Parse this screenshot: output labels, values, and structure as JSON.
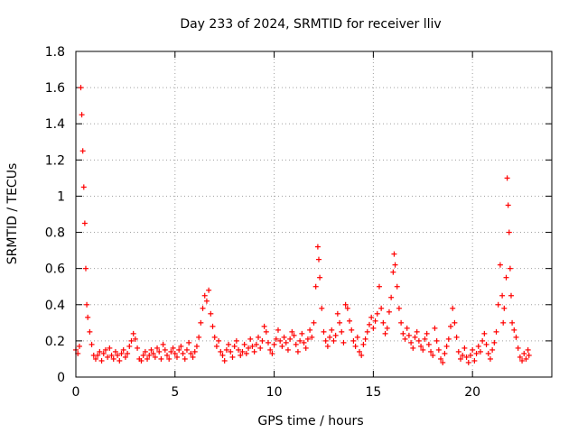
{
  "chart_data": {
    "type": "scatter",
    "title": "Day 233 of 2024, SRMTID for receiver lliv",
    "xlabel": "GPS time / hours",
    "ylabel": "SRMTID / TECUs",
    "xlim": [
      0,
      24
    ],
    "ylim": [
      0,
      1.8
    ],
    "xticks": [
      0,
      5,
      10,
      15,
      20
    ],
    "xtick_labels": [
      "0",
      "5",
      "10",
      "15",
      "20"
    ],
    "yticks": [
      0,
      0.2,
      0.4,
      0.6,
      0.8,
      1.0,
      1.2,
      1.4,
      1.6,
      1.8
    ],
    "ytick_labels": [
      "0",
      "0.2",
      "0.4",
      "0.6",
      "0.8",
      "1",
      "1.2",
      "1.4",
      "1.6",
      "1.8"
    ],
    "grid": true,
    "marker": "+",
    "series": [
      {
        "name": "SRMTID",
        "color": "#ff0000",
        "points": [
          [
            0.0,
            0.15
          ],
          [
            0.1,
            0.13
          ],
          [
            0.18,
            0.17
          ],
          [
            0.25,
            1.6
          ],
          [
            0.3,
            1.45
          ],
          [
            0.35,
            1.25
          ],
          [
            0.4,
            1.05
          ],
          [
            0.45,
            0.85
          ],
          [
            0.5,
            0.6
          ],
          [
            0.55,
            0.4
          ],
          [
            0.6,
            0.33
          ],
          [
            0.7,
            0.25
          ],
          [
            0.8,
            0.18
          ],
          [
            0.9,
            0.12
          ],
          [
            1.0,
            0.1
          ],
          [
            1.1,
            0.12
          ],
          [
            1.2,
            0.14
          ],
          [
            1.3,
            0.09
          ],
          [
            1.4,
            0.13
          ],
          [
            1.5,
            0.15
          ],
          [
            1.6,
            0.11
          ],
          [
            1.7,
            0.16
          ],
          [
            1.8,
            0.12
          ],
          [
            1.9,
            0.1
          ],
          [
            2.0,
            0.14
          ],
          [
            2.1,
            0.12
          ],
          [
            2.2,
            0.09
          ],
          [
            2.3,
            0.13
          ],
          [
            2.4,
            0.15
          ],
          [
            2.5,
            0.11
          ],
          [
            2.6,
            0.13
          ],
          [
            2.7,
            0.17
          ],
          [
            2.8,
            0.2
          ],
          [
            2.9,
            0.24
          ],
          [
            3.0,
            0.21
          ],
          [
            3.1,
            0.16
          ],
          [
            3.2,
            0.1
          ],
          [
            3.3,
            0.09
          ],
          [
            3.4,
            0.12
          ],
          [
            3.5,
            0.14
          ],
          [
            3.6,
            0.1
          ],
          [
            3.7,
            0.12
          ],
          [
            3.8,
            0.15
          ],
          [
            3.9,
            0.13
          ],
          [
            4.0,
            0.11
          ],
          [
            4.1,
            0.16
          ],
          [
            4.2,
            0.14
          ],
          [
            4.3,
            0.1
          ],
          [
            4.4,
            0.18
          ],
          [
            4.5,
            0.15
          ],
          [
            4.6,
            0.12
          ],
          [
            4.7,
            0.1
          ],
          [
            4.8,
            0.14
          ],
          [
            4.9,
            0.16
          ],
          [
            5.0,
            0.13
          ],
          [
            5.1,
            0.11
          ],
          [
            5.2,
            0.15
          ],
          [
            5.3,
            0.17
          ],
          [
            5.4,
            0.13
          ],
          [
            5.5,
            0.1
          ],
          [
            5.6,
            0.15
          ],
          [
            5.7,
            0.19
          ],
          [
            5.8,
            0.13
          ],
          [
            5.9,
            0.11
          ],
          [
            6.0,
            0.14
          ],
          [
            6.1,
            0.17
          ],
          [
            6.2,
            0.22
          ],
          [
            6.3,
            0.3
          ],
          [
            6.4,
            0.38
          ],
          [
            6.5,
            0.45
          ],
          [
            6.6,
            0.42
          ],
          [
            6.7,
            0.48
          ],
          [
            6.8,
            0.35
          ],
          [
            6.9,
            0.28
          ],
          [
            7.0,
            0.22
          ],
          [
            7.1,
            0.17
          ],
          [
            7.2,
            0.2
          ],
          [
            7.3,
            0.14
          ],
          [
            7.4,
            0.12
          ],
          [
            7.5,
            0.09
          ],
          [
            7.6,
            0.15
          ],
          [
            7.7,
            0.18
          ],
          [
            7.8,
            0.14
          ],
          [
            7.9,
            0.11
          ],
          [
            8.0,
            0.17
          ],
          [
            8.1,
            0.2
          ],
          [
            8.2,
            0.15
          ],
          [
            8.3,
            0.12
          ],
          [
            8.4,
            0.14
          ],
          [
            8.5,
            0.18
          ],
          [
            8.6,
            0.13
          ],
          [
            8.7,
            0.16
          ],
          [
            8.8,
            0.21
          ],
          [
            8.9,
            0.17
          ],
          [
            9.0,
            0.14
          ],
          [
            9.1,
            0.18
          ],
          [
            9.2,
            0.22
          ],
          [
            9.3,
            0.16
          ],
          [
            9.4,
            0.2
          ],
          [
            9.5,
            0.28
          ],
          [
            9.6,
            0.25
          ],
          [
            9.7,
            0.19
          ],
          [
            9.8,
            0.15
          ],
          [
            9.9,
            0.13
          ],
          [
            10.0,
            0.18
          ],
          [
            10.1,
            0.21
          ],
          [
            10.2,
            0.26
          ],
          [
            10.3,
            0.2
          ],
          [
            10.4,
            0.17
          ],
          [
            10.5,
            0.22
          ],
          [
            10.6,
            0.19
          ],
          [
            10.7,
            0.15
          ],
          [
            10.8,
            0.21
          ],
          [
            10.9,
            0.25
          ],
          [
            11.0,
            0.23
          ],
          [
            11.1,
            0.18
          ],
          [
            11.2,
            0.14
          ],
          [
            11.3,
            0.2
          ],
          [
            11.4,
            0.24
          ],
          [
            11.5,
            0.19
          ],
          [
            11.6,
            0.16
          ],
          [
            11.7,
            0.21
          ],
          [
            11.8,
            0.26
          ],
          [
            11.9,
            0.22
          ],
          [
            12.0,
            0.3
          ],
          [
            12.1,
            0.5
          ],
          [
            12.2,
            0.72
          ],
          [
            12.25,
            0.65
          ],
          [
            12.3,
            0.55
          ],
          [
            12.4,
            0.38
          ],
          [
            12.5,
            0.25
          ],
          [
            12.6,
            0.2
          ],
          [
            12.7,
            0.17
          ],
          [
            12.8,
            0.22
          ],
          [
            12.9,
            0.26
          ],
          [
            13.0,
            0.2
          ],
          [
            13.1,
            0.23
          ],
          [
            13.2,
            0.35
          ],
          [
            13.3,
            0.3
          ],
          [
            13.4,
            0.25
          ],
          [
            13.5,
            0.19
          ],
          [
            13.6,
            0.4
          ],
          [
            13.7,
            0.38
          ],
          [
            13.8,
            0.31
          ],
          [
            13.9,
            0.26
          ],
          [
            14.0,
            0.2
          ],
          [
            14.1,
            0.17
          ],
          [
            14.2,
            0.22
          ],
          [
            14.3,
            0.14
          ],
          [
            14.4,
            0.12
          ],
          [
            14.5,
            0.18
          ],
          [
            14.6,
            0.21
          ],
          [
            14.7,
            0.25
          ],
          [
            14.8,
            0.29
          ],
          [
            14.9,
            0.33
          ],
          [
            15.0,
            0.27
          ],
          [
            15.1,
            0.31
          ],
          [
            15.2,
            0.35
          ],
          [
            15.3,
            0.5
          ],
          [
            15.4,
            0.38
          ],
          [
            15.5,
            0.3
          ],
          [
            15.6,
            0.24
          ],
          [
            15.7,
            0.27
          ],
          [
            15.8,
            0.36
          ],
          [
            15.9,
            0.44
          ],
          [
            16.0,
            0.58
          ],
          [
            16.05,
            0.68
          ],
          [
            16.1,
            0.62
          ],
          [
            16.2,
            0.5
          ],
          [
            16.3,
            0.38
          ],
          [
            16.4,
            0.3
          ],
          [
            16.5,
            0.24
          ],
          [
            16.6,
            0.21
          ],
          [
            16.7,
            0.27
          ],
          [
            16.8,
            0.23
          ],
          [
            16.9,
            0.19
          ],
          [
            17.0,
            0.16
          ],
          [
            17.1,
            0.22
          ],
          [
            17.2,
            0.25
          ],
          [
            17.3,
            0.2
          ],
          [
            17.4,
            0.17
          ],
          [
            17.5,
            0.15
          ],
          [
            17.6,
            0.21
          ],
          [
            17.7,
            0.24
          ],
          [
            17.8,
            0.18
          ],
          [
            17.9,
            0.14
          ],
          [
            18.0,
            0.12
          ],
          [
            18.1,
            0.27
          ],
          [
            18.2,
            0.2
          ],
          [
            18.3,
            0.15
          ],
          [
            18.4,
            0.1
          ],
          [
            18.5,
            0.08
          ],
          [
            18.6,
            0.13
          ],
          [
            18.7,
            0.17
          ],
          [
            18.8,
            0.21
          ],
          [
            18.9,
            0.28
          ],
          [
            19.0,
            0.38
          ],
          [
            19.1,
            0.3
          ],
          [
            19.2,
            0.22
          ],
          [
            19.3,
            0.14
          ],
          [
            19.4,
            0.1
          ],
          [
            19.5,
            0.12
          ],
          [
            19.6,
            0.16
          ],
          [
            19.7,
            0.11
          ],
          [
            19.8,
            0.08
          ],
          [
            19.9,
            0.12
          ],
          [
            20.0,
            0.15
          ],
          [
            20.1,
            0.09
          ],
          [
            20.2,
            0.13
          ],
          [
            20.3,
            0.17
          ],
          [
            20.4,
            0.14
          ],
          [
            20.5,
            0.2
          ],
          [
            20.6,
            0.24
          ],
          [
            20.7,
            0.18
          ],
          [
            20.8,
            0.13
          ],
          [
            20.9,
            0.1
          ],
          [
            21.0,
            0.15
          ],
          [
            21.1,
            0.19
          ],
          [
            21.2,
            0.25
          ],
          [
            21.3,
            0.4
          ],
          [
            21.4,
            0.62
          ],
          [
            21.5,
            0.45
          ],
          [
            21.55,
            0.3
          ],
          [
            21.6,
            0.38
          ],
          [
            21.7,
            0.55
          ],
          [
            21.75,
            1.1
          ],
          [
            21.8,
            0.95
          ],
          [
            21.85,
            0.8
          ],
          [
            21.9,
            0.6
          ],
          [
            21.95,
            0.45
          ],
          [
            22.0,
            0.3
          ],
          [
            22.1,
            0.26
          ],
          [
            22.2,
            0.22
          ],
          [
            22.3,
            0.16
          ],
          [
            22.4,
            0.11
          ],
          [
            22.5,
            0.09
          ],
          [
            22.6,
            0.13
          ],
          [
            22.7,
            0.1
          ],
          [
            22.8,
            0.15
          ],
          [
            22.85,
            0.12
          ]
        ]
      }
    ]
  }
}
